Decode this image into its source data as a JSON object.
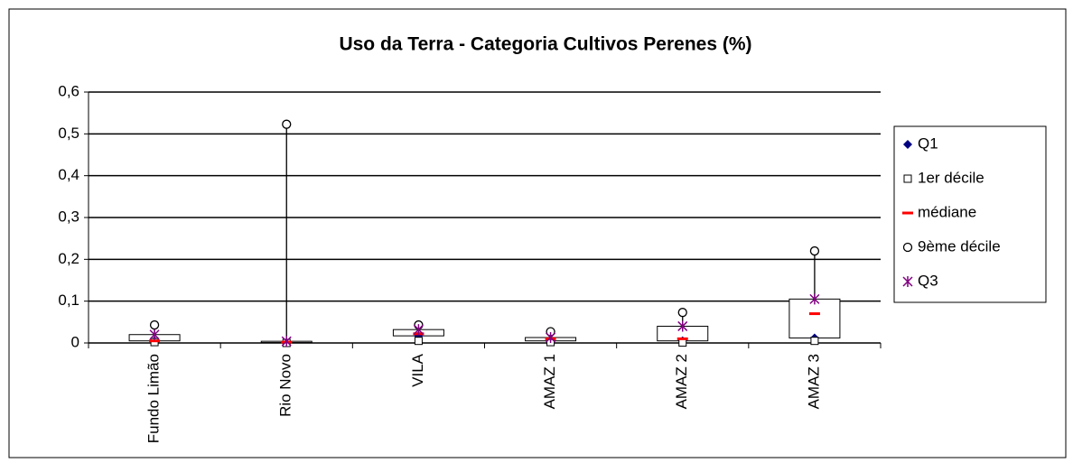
{
  "chart_data": {
    "type": "box",
    "title": "Uso da Terra - Categoria Cultivos Perenes (%)",
    "categories": [
      "Fundo Limão",
      "Rio Novo",
      "VILA",
      "AMAZ 1",
      "AMAZ 2",
      "AMAZ 3"
    ],
    "series": [
      {
        "name": "Q1",
        "color": "#000080",
        "values": [
          0.005,
          0.001,
          0.017,
          0.005,
          0.005,
          0.012
        ]
      },
      {
        "name": "1er décile",
        "color": "#000000",
        "values": [
          0.002,
          0.0,
          0.005,
          0.002,
          0.001,
          0.005
        ]
      },
      {
        "name": "médiane",
        "color": "#ff0000",
        "values": [
          0.005,
          0.002,
          0.022,
          0.01,
          0.01,
          0.07
        ]
      },
      {
        "name": "9ème décile",
        "color": "#000000",
        "values": [
          0.043,
          0.523,
          0.043,
          0.027,
          0.073,
          0.22
        ]
      },
      {
        "name": "Q3",
        "color": "#800080",
        "values": [
          0.02,
          0.004,
          0.032,
          0.013,
          0.04,
          0.105
        ]
      }
    ],
    "ylim": [
      0,
      0.6
    ],
    "yticks": [
      0,
      {
        "value": 0.1,
        "label": "0,1"
      },
      {
        "value": 0.2,
        "label": "0,2"
      },
      {
        "value": 0.3,
        "label": "0,3"
      },
      {
        "value": 0.4,
        "label": "0,4"
      },
      {
        "value": 0.5,
        "label": "0,5"
      },
      {
        "value": 0.6,
        "label": "0,6"
      }
    ],
    "grid": true,
    "legend": "right"
  }
}
